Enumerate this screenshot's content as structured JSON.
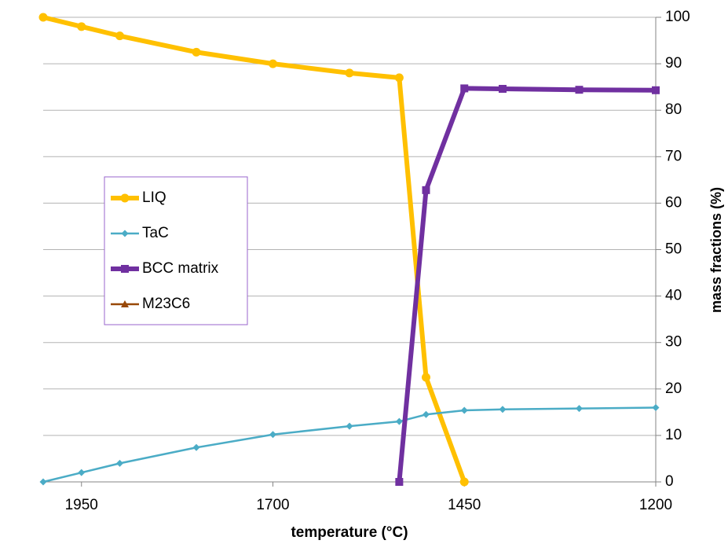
{
  "chart_data": {
    "type": "line",
    "xlabel": "temperature (°C)",
    "ylabel": "mass fractions (%)",
    "x": [
      2000,
      1950,
      1900,
      1800,
      1700,
      1600,
      1535,
      1500,
      1450,
      1400,
      1300,
      1200
    ],
    "series": [
      {
        "name": "LIQ",
        "color": "#ffc000",
        "marker": "circle",
        "values": [
          100,
          98,
          96,
          92.5,
          90,
          88,
          87,
          22.5,
          0,
          null,
          null,
          null
        ]
      },
      {
        "name": "TaC",
        "color": "#4bacc6",
        "marker": "diamond",
        "values": [
          0,
          2,
          4,
          7.4,
          10.2,
          12,
          13,
          14.5,
          15.4,
          15.6,
          15.8,
          16
        ]
      },
      {
        "name": "BCC matrix",
        "color": "#7030a0",
        "marker": "square",
        "values": [
          null,
          null,
          null,
          null,
          null,
          null,
          0,
          62.8,
          84.7,
          84.6,
          84.4,
          84.3
        ]
      },
      {
        "name": "M23C6",
        "color": "#984807",
        "marker": "triangle",
        "values": [
          null,
          null,
          null,
          null,
          null,
          null,
          null,
          null,
          null,
          null,
          null,
          null
        ]
      }
    ],
    "xlim": [
      2000,
      1200
    ],
    "xticks": [
      1950,
      1700,
      1450,
      1200
    ],
    "ylim": [
      0,
      100
    ],
    "yticks": [
      0,
      10,
      20,
      30,
      40,
      50,
      60,
      70,
      80,
      90,
      100
    ],
    "grid": true,
    "y_axis_side": "right"
  }
}
